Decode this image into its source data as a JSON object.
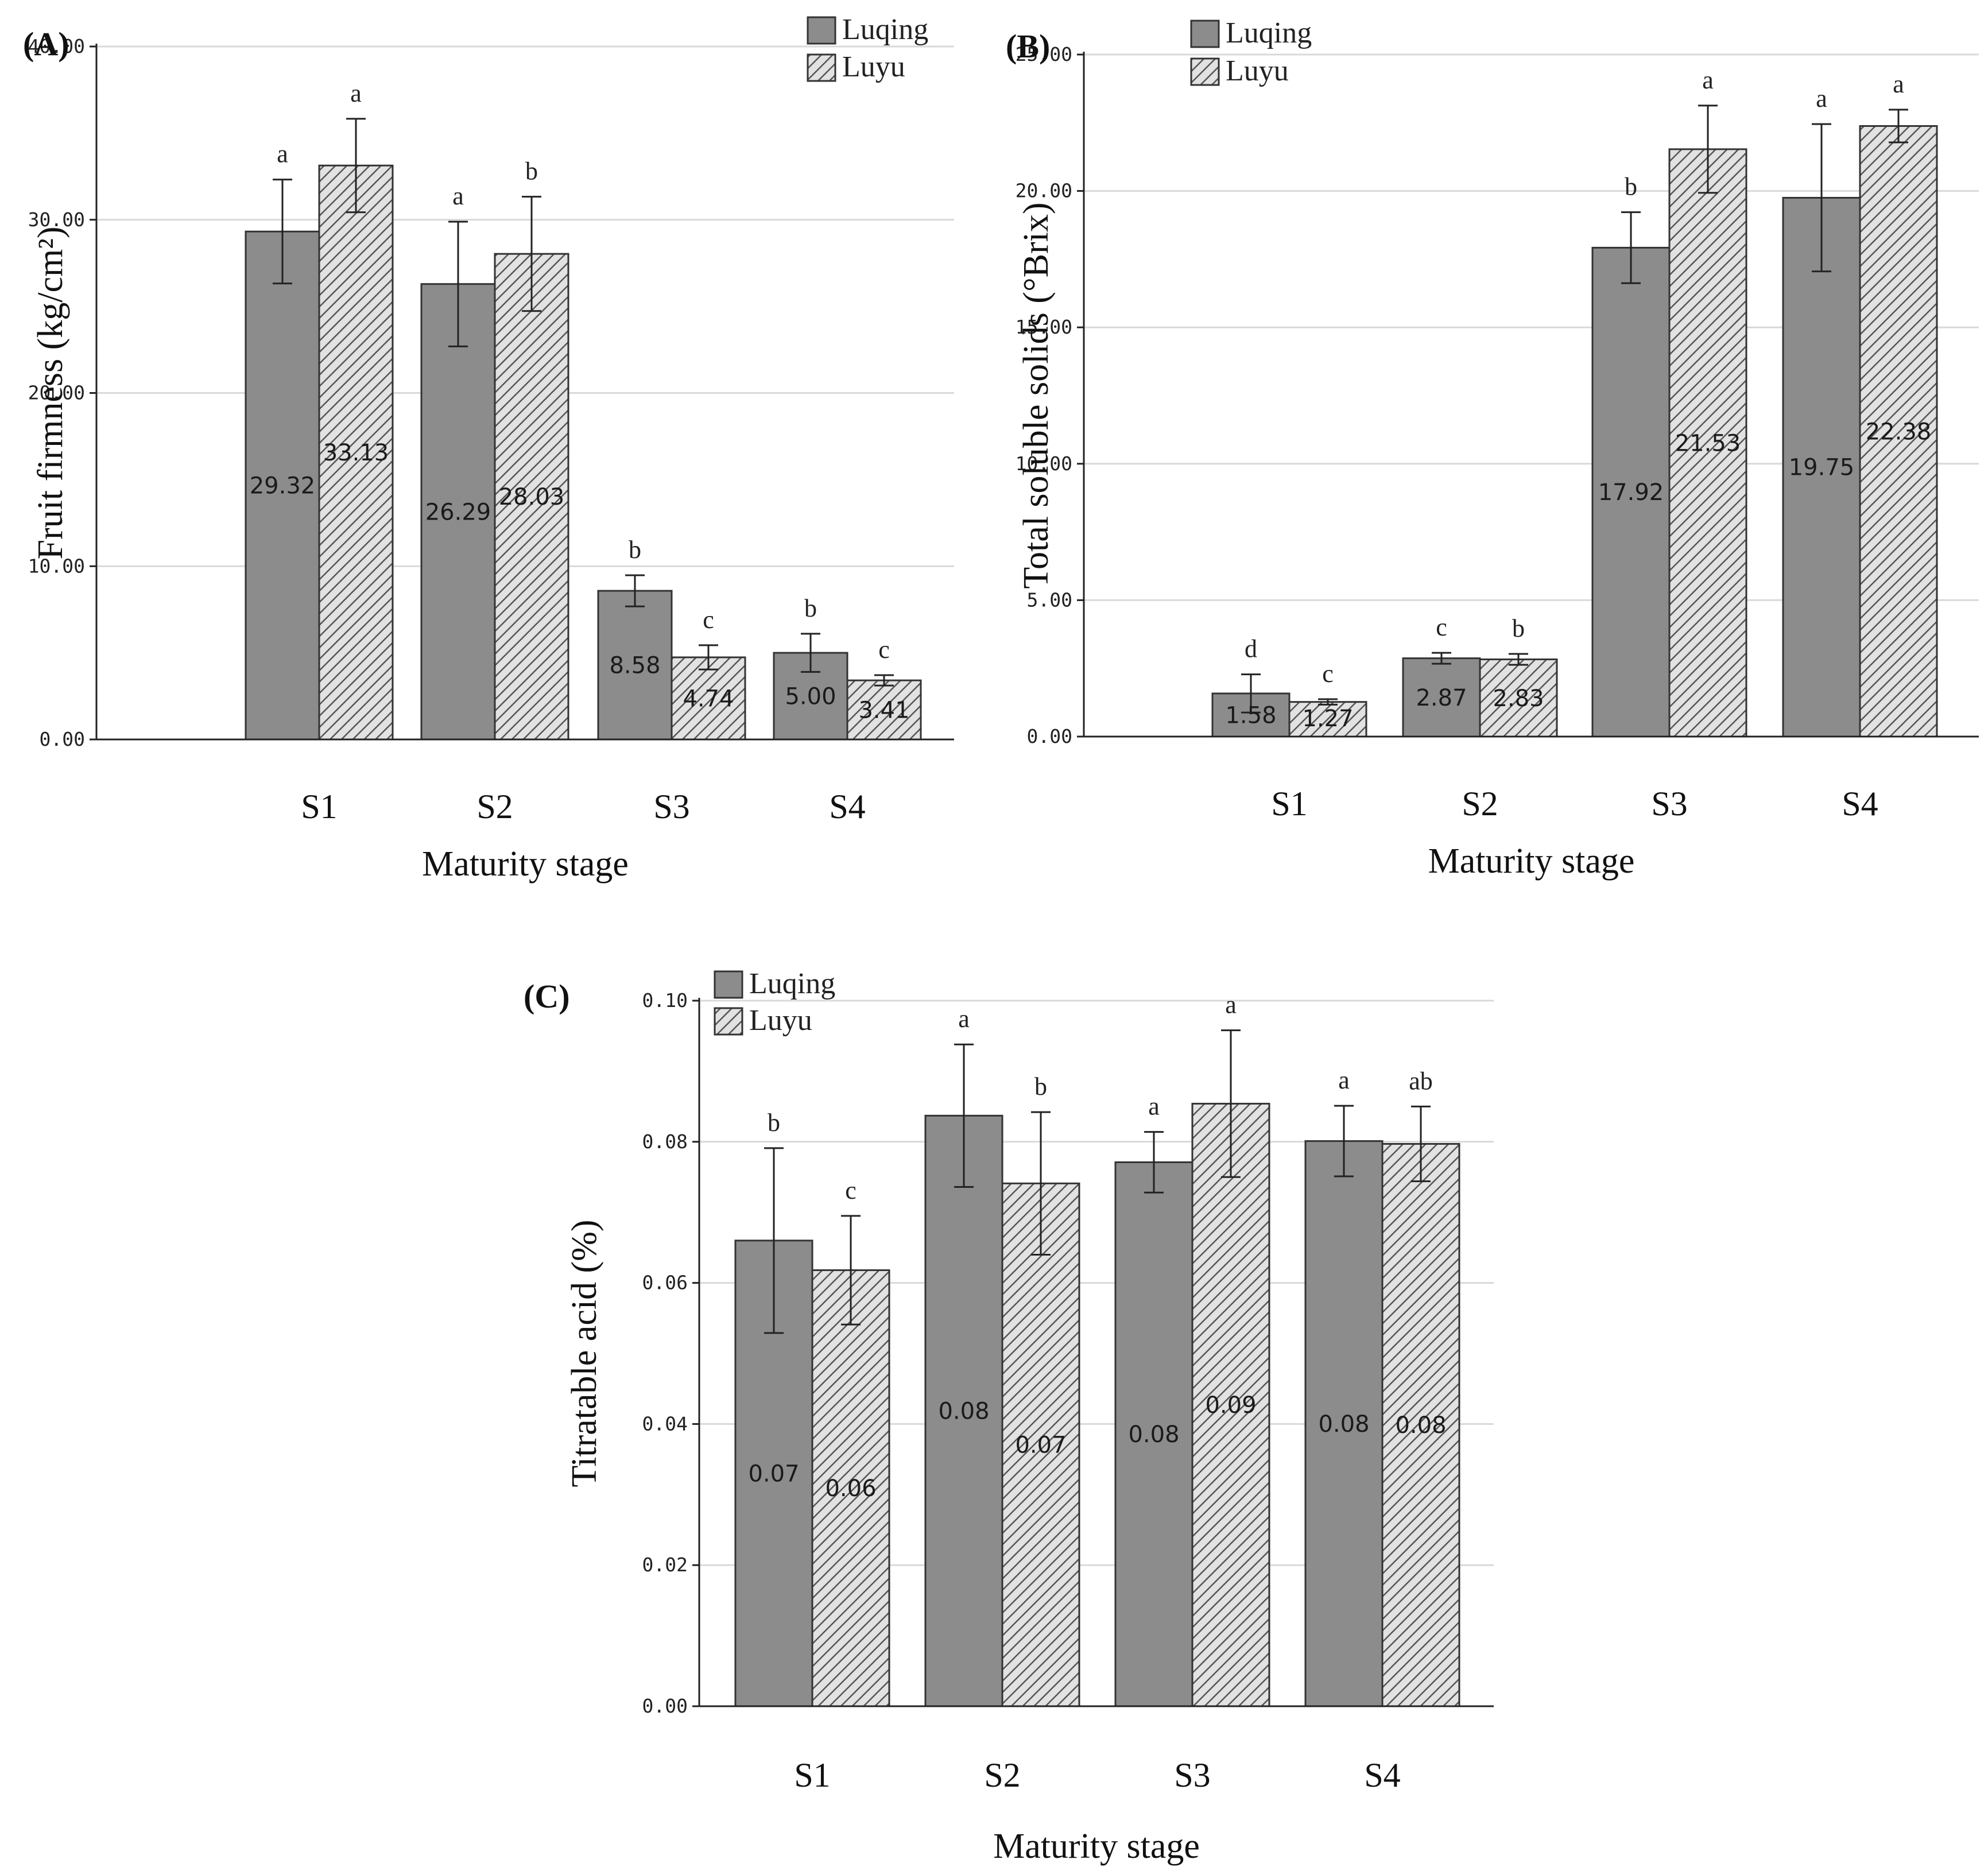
{
  "figure": {
    "layout": "three bar chart panels, A and B on the top row, C centered below"
  },
  "colors": {
    "luqing_fill": "#8c8c8c",
    "luyu_fill": "#e2e2e2",
    "hatch_stroke": "#555555",
    "bar_outline": "#333333",
    "axis": "#222222",
    "grid": "#d9d9d9",
    "error_bar": "#222222"
  },
  "legend": {
    "series": [
      "Luqing",
      "Luyu"
    ],
    "luqing_icon": "solid-square-icon",
    "luyu_icon": "hatched-square-icon"
  },
  "chart_data": [
    {
      "id": "A",
      "panel_label": "(A)",
      "type": "bar",
      "xlabel": "Maturity stage",
      "ylabel": "Fruit firmness (kg/cm²)",
      "categories": [
        "S1",
        "S2",
        "S3",
        "S4"
      ],
      "ylim": [
        0,
        40
      ],
      "yticks": [
        "0.00",
        "10.00",
        "20.00",
        "30.00",
        "40.00"
      ],
      "legend_position": "top-right",
      "series": [
        {
          "name": "Luqing",
          "values": [
            29.32,
            26.29,
            8.58,
            5.0
          ],
          "errors": [
            3.0,
            3.6,
            0.9,
            1.1
          ],
          "value_labels": [
            "29.32",
            "26.29",
            "8.58",
            "5.00"
          ],
          "letters": [
            "a",
            "a",
            "b",
            "b"
          ]
        },
        {
          "name": "Luyu",
          "values": [
            33.13,
            28.03,
            4.74,
            3.41
          ],
          "errors": [
            2.7,
            3.3,
            0.7,
            0.3
          ],
          "value_labels": [
            "33.13",
            "28.03",
            "4.74",
            "3.41"
          ],
          "letters": [
            "a",
            "b",
            "c",
            "c"
          ]
        }
      ]
    },
    {
      "id": "B",
      "panel_label": "(B)",
      "type": "bar",
      "xlabel": "Maturity stage",
      "ylabel": "Total soluble solids (°Brix)",
      "categories": [
        "S1",
        "S2",
        "S3",
        "S4"
      ],
      "ylim": [
        0,
        25
      ],
      "yticks": [
        "0.00",
        "5.00",
        "10.00",
        "15.00",
        "20.00",
        "25.00"
      ],
      "legend_position": "top-left",
      "series": [
        {
          "name": "Luqing",
          "values": [
            1.58,
            2.87,
            17.92,
            19.75
          ],
          "errors": [
            0.7,
            0.2,
            1.3,
            2.7
          ],
          "value_labels": [
            "1.58",
            "2.87",
            "17.92",
            "19.75"
          ],
          "letters": [
            "d",
            "c",
            "b",
            "a"
          ]
        },
        {
          "name": "Luyu",
          "values": [
            1.27,
            2.83,
            21.53,
            22.38
          ],
          "errors": [
            0.1,
            0.2,
            1.6,
            0.6
          ],
          "value_labels": [
            "1.27",
            "2.83",
            "21.53",
            "22.38"
          ],
          "letters": [
            "c",
            "b",
            "a",
            "a"
          ]
        }
      ]
    },
    {
      "id": "C",
      "panel_label": "(C)",
      "type": "bar",
      "xlabel": "Maturity stage",
      "ylabel": "Titratable    acid    (%)",
      "categories": [
        "S1",
        "S2",
        "S3",
        "S4"
      ],
      "ylim": [
        0,
        0.1
      ],
      "yticks": [
        "0.00",
        "0.02",
        "0.04",
        "0.06",
        "0.08",
        "0.10"
      ],
      "legend_position": "top-left",
      "series": [
        {
          "name": "Luqing",
          "values": [
            0.066,
            0.0837,
            0.0771,
            0.0801
          ],
          "errors": [
            0.0131,
            0.0101,
            0.0043,
            0.005
          ],
          "value_labels": [
            "0.07",
            "0.08",
            "0.08",
            "0.08"
          ],
          "letters": [
            "b",
            "a",
            "a",
            "a"
          ]
        },
        {
          "name": "Luyu",
          "values": [
            0.0618,
            0.0741,
            0.0854,
            0.0797
          ],
          "errors": [
            0.0077,
            0.0101,
            0.0104,
            0.0053
          ],
          "value_labels": [
            "0.06",
            "0.07",
            "0.09",
            "0.08"
          ],
          "letters": [
            "c",
            "b",
            "a",
            "ab"
          ]
        }
      ]
    }
  ]
}
